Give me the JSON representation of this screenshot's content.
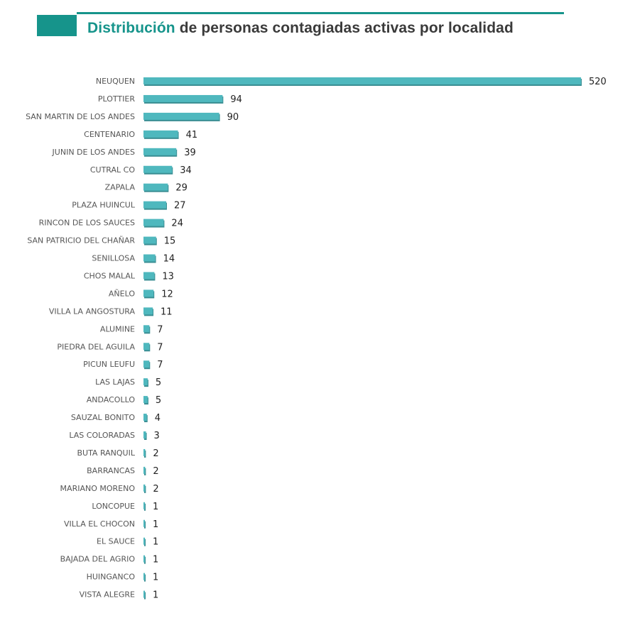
{
  "title": {
    "accent": "Distribución",
    "rest": "de personas contagiadas activas por localidad"
  },
  "colors": {
    "brand": "#16948b",
    "bar": "#4fb8be",
    "bar_shadow": "#3a8e93",
    "title_text": "#3a3a3a"
  },
  "chart_data": {
    "type": "bar",
    "orientation": "horizontal",
    "categories": [
      "NEUQUEN",
      "PLOTTIER",
      "SAN MARTIN DE LOS ANDES",
      "CENTENARIO",
      "JUNIN DE LOS ANDES",
      "CUTRAL CO",
      "ZAPALA",
      "PLAZA HUINCUL",
      "RINCON DE LOS SAUCES",
      "SAN PATRICIO DEL CHAÑAR",
      "SENILLOSA",
      "CHOS MALAL",
      "AÑELO",
      "VILLA LA ANGOSTURA",
      "ALUMINE",
      "PIEDRA DEL AGUILA",
      "PICUN LEUFU",
      "LAS LAJAS",
      "ANDACOLLO",
      "SAUZAL BONITO",
      "LAS COLORADAS",
      "BUTA RANQUIL",
      "BARRANCAS",
      "MARIANO MORENO",
      "LONCOPUE",
      "VILLA EL CHOCON",
      "EL SAUCE",
      "BAJADA DEL AGRIO",
      "HUINGANCO",
      "VISTA ALEGRE"
    ],
    "values": [
      520,
      94,
      90,
      41,
      39,
      34,
      29,
      27,
      24,
      15,
      14,
      13,
      12,
      11,
      7,
      7,
      7,
      5,
      5,
      4,
      3,
      2,
      2,
      2,
      1,
      1,
      1,
      1,
      1,
      1
    ],
    "xlim": [
      0,
      520
    ],
    "grid": false,
    "legend": "none",
    "data_labels": true
  }
}
